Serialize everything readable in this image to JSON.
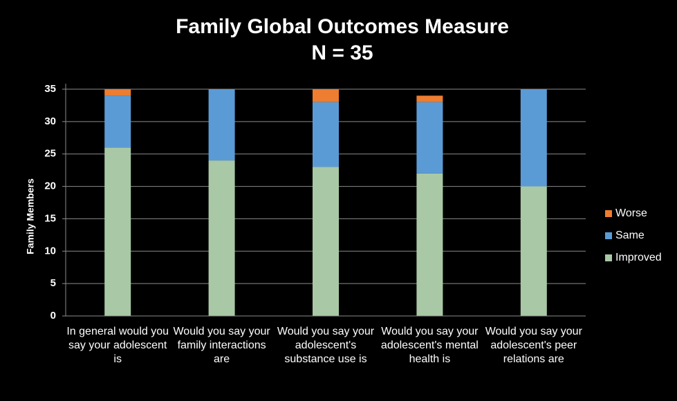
{
  "chart_data": {
    "type": "stacked_bar",
    "title": "Family Global Outcomes Measure",
    "subtitle": "N = 35",
    "y_label": "Family Members",
    "categories": [
      "In general would you say your adolescent is",
      "Would you say your family interactions are",
      "Would you say your adolescent's substance use is",
      "Would you say your adolescent's mental health is",
      "Would you say your adolescent's peer relations are"
    ],
    "series": [
      {
        "name": "Improved",
        "color": "#a9c8a5",
        "values": [
          26,
          24,
          23,
          22,
          20
        ]
      },
      {
        "name": "Same",
        "color": "#5b9bd5",
        "values": [
          8,
          11,
          10,
          11,
          15
        ]
      },
      {
        "name": "Worse",
        "color": "#ed7d31",
        "values": [
          1,
          0,
          2,
          1,
          0
        ]
      }
    ],
    "ylim": [
      0,
      35
    ],
    "yticks": [
      0,
      5,
      10,
      15,
      20,
      25,
      30,
      35
    ],
    "grid": true,
    "legend": "right"
  }
}
